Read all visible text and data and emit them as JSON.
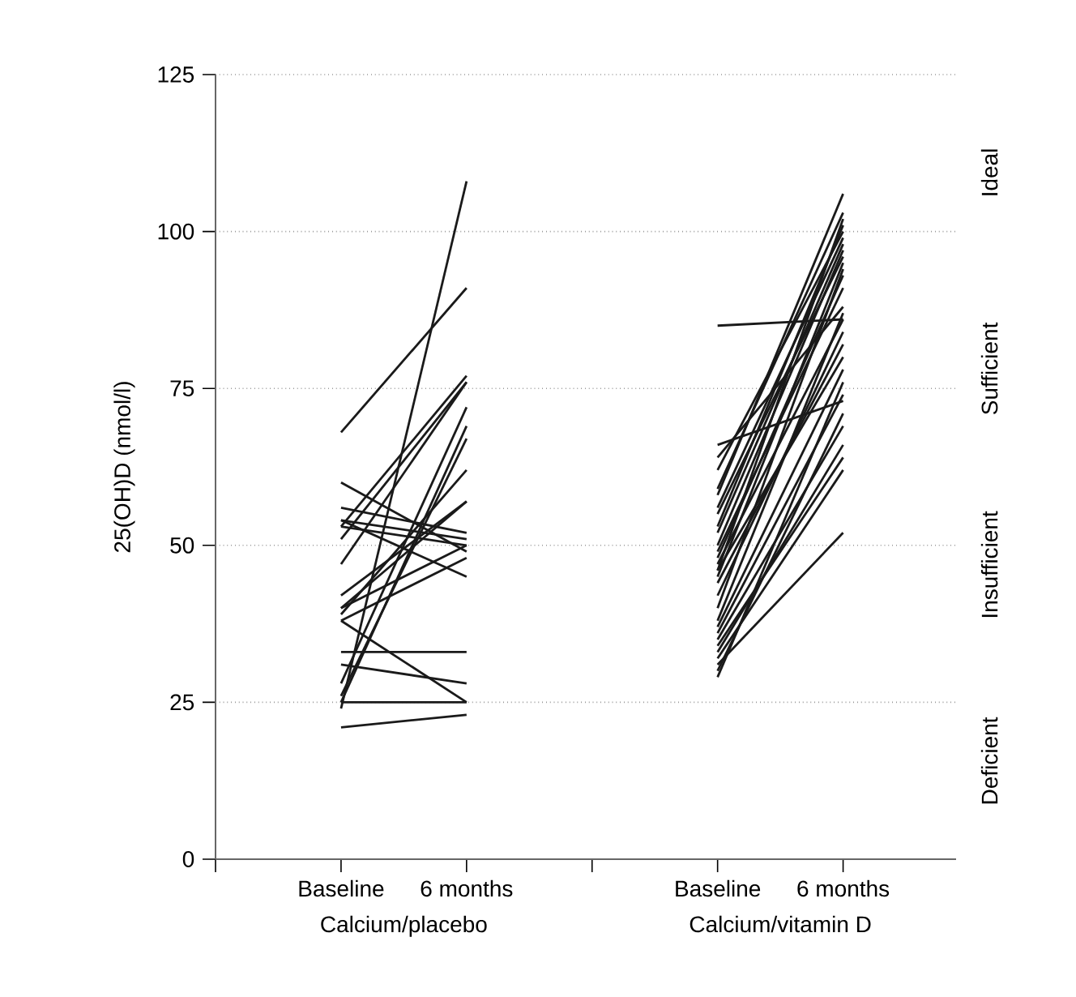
{
  "chart_data": {
    "type": "line",
    "ylabel": "25(OH)D (nmol/l)",
    "categories": [
      null,
      "Baseline",
      "6 months",
      null,
      "Baseline",
      "6 months"
    ],
    "ylim": [
      0,
      125
    ],
    "yticks": [
      0,
      25,
      50,
      75,
      100,
      125
    ],
    "grid": "y",
    "annotations": [
      "Calcium/placebo",
      "Calcium/vitamin D",
      "Deficient",
      "Insufficient",
      "Sufficient",
      "Ideal"
    ],
    "series": [
      {
        "color": "#1a1a1a",
        "values": [
          null,
          68,
          91,
          null,
          null,
          null
        ]
      },
      {
        "color": "#1a1a1a",
        "values": [
          null,
          24,
          108,
          null,
          null,
          null
        ]
      },
      {
        "color": "#1a1a1a",
        "values": [
          null,
          53,
          77,
          null,
          null,
          null
        ]
      },
      {
        "color": "#1a1a1a",
        "values": [
          null,
          51,
          76,
          null,
          null,
          null
        ]
      },
      {
        "color": "#1a1a1a",
        "values": [
          null,
          60,
          49,
          null,
          null,
          null
        ]
      },
      {
        "color": "#1a1a1a",
        "values": [
          null,
          56,
          52,
          null,
          null,
          null
        ]
      },
      {
        "color": "#1a1a1a",
        "values": [
          null,
          54,
          51,
          null,
          null,
          null
        ]
      },
      {
        "color": "#1a1a1a",
        "values": [
          null,
          54,
          45,
          null,
          null,
          null
        ]
      },
      {
        "color": "#1a1a1a",
        "values": [
          null,
          47,
          76,
          null,
          null,
          null
        ]
      },
      {
        "color": "#1a1a1a",
        "values": [
          null,
          42,
          57,
          null,
          null,
          null
        ]
      },
      {
        "color": "#1a1a1a",
        "values": [
          null,
          39,
          62,
          null,
          null,
          null
        ]
      },
      {
        "color": "#1a1a1a",
        "values": [
          null,
          38,
          48,
          null,
          null,
          null
        ]
      },
      {
        "color": "#1a1a1a",
        "values": [
          null,
          38,
          25,
          null,
          null,
          null
        ]
      },
      {
        "color": "#1a1a1a",
        "values": [
          null,
          33,
          33,
          null,
          null,
          null
        ]
      },
      {
        "color": "#1a1a1a",
        "values": [
          null,
          31,
          28,
          null,
          null,
          null
        ]
      },
      {
        "color": "#1a1a1a",
        "values": [
          null,
          25,
          25,
          null,
          null,
          null
        ]
      },
      {
        "color": "#1a1a1a",
        "values": [
          null,
          21,
          23,
          null,
          null,
          null
        ]
      },
      {
        "color": "#1a1a1a",
        "values": [
          null,
          28,
          72,
          null,
          null,
          null
        ]
      },
      {
        "color": "#1a1a1a",
        "values": [
          null,
          25,
          69,
          null,
          null,
          null
        ]
      },
      {
        "color": "#1a1a1a",
        "values": [
          null,
          26,
          67,
          null,
          null,
          null
        ]
      },
      {
        "color": "#1a1a1a",
        "values": [
          null,
          40,
          57,
          null,
          null,
          null
        ]
      },
      {
        "color": "#1a1a1a",
        "values": [
          null,
          53,
          50,
          null,
          null,
          null
        ]
      },
      {
        "color": "#1a1a1a",
        "values": [
          null,
          40,
          50,
          null,
          null,
          null
        ]
      },
      {
        "color": "#1a1a1a",
        "values": [
          null,
          null,
          null,
          null,
          85,
          86
        ]
      },
      {
        "color": "#1a1a1a",
        "values": [
          null,
          null,
          null,
          null,
          66,
          73
        ]
      },
      {
        "color": "#1a1a1a",
        "values": [
          null,
          null,
          null,
          null,
          64,
          88
        ]
      },
      {
        "color": "#1a1a1a",
        "values": [
          null,
          null,
          null,
          null,
          62,
          100
        ]
      },
      {
        "color": "#1a1a1a",
        "values": [
          null,
          null,
          null,
          null,
          59,
          103
        ]
      },
      {
        "color": "#1a1a1a",
        "values": [
          null,
          null,
          null,
          null,
          58,
          106
        ]
      },
      {
        "color": "#1a1a1a",
        "values": [
          null,
          null,
          null,
          null,
          56,
          99
        ]
      },
      {
        "color": "#1a1a1a",
        "values": [
          null,
          null,
          null,
          null,
          55,
          96
        ]
      },
      {
        "color": "#1a1a1a",
        "values": [
          null,
          null,
          null,
          null,
          53,
          101
        ]
      },
      {
        "color": "#1a1a1a",
        "values": [
          null,
          null,
          null,
          null,
          52,
          98
        ]
      },
      {
        "color": "#1a1a1a",
        "values": [
          null,
          null,
          null,
          null,
          50,
          97
        ]
      },
      {
        "color": "#1a1a1a",
        "values": [
          null,
          null,
          null,
          null,
          49,
          91
        ]
      },
      {
        "color": "#1a1a1a",
        "values": [
          null,
          null,
          null,
          null,
          48,
          93
        ]
      },
      {
        "color": "#1a1a1a",
        "values": [
          null,
          null,
          null,
          null,
          47,
          86
        ]
      },
      {
        "color": "#1a1a1a",
        "values": [
          null,
          null,
          null,
          null,
          46,
          80
        ]
      },
      {
        "color": "#1a1a1a",
        "values": [
          null,
          null,
          null,
          null,
          46,
          102
        ]
      },
      {
        "color": "#1a1a1a",
        "values": [
          null,
          null,
          null,
          null,
          45,
          95
        ]
      },
      {
        "color": "#1a1a1a",
        "values": [
          null,
          null,
          null,
          null,
          44,
          82
        ]
      },
      {
        "color": "#1a1a1a",
        "values": [
          null,
          null,
          null,
          null,
          42,
          84
        ]
      },
      {
        "color": "#1a1a1a",
        "values": [
          null,
          null,
          null,
          null,
          40,
          94
        ]
      },
      {
        "color": "#1a1a1a",
        "values": [
          null,
          null,
          null,
          null,
          38,
          87
        ]
      },
      {
        "color": "#1a1a1a",
        "values": [
          null,
          null,
          null,
          null,
          37,
          78
        ]
      },
      {
        "color": "#1a1a1a",
        "values": [
          null,
          null,
          null,
          null,
          36,
          74
        ]
      },
      {
        "color": "#1a1a1a",
        "values": [
          null,
          null,
          null,
          null,
          35,
          69
        ]
      },
      {
        "color": "#1a1a1a",
        "values": [
          null,
          null,
          null,
          null,
          34,
          64
        ]
      },
      {
        "color": "#1a1a1a",
        "values": [
          null,
          null,
          null,
          null,
          33,
          66
        ]
      },
      {
        "color": "#1a1a1a",
        "values": [
          null,
          null,
          null,
          null,
          32,
          62
        ]
      },
      {
        "color": "#1a1a1a",
        "values": [
          null,
          null,
          null,
          null,
          31,
          52
        ]
      },
      {
        "color": "#1a1a1a",
        "values": [
          null,
          null,
          null,
          null,
          30,
          71
        ]
      },
      {
        "color": "#1a1a1a",
        "values": [
          null,
          null,
          null,
          null,
          29,
          76
        ]
      }
    ]
  }
}
